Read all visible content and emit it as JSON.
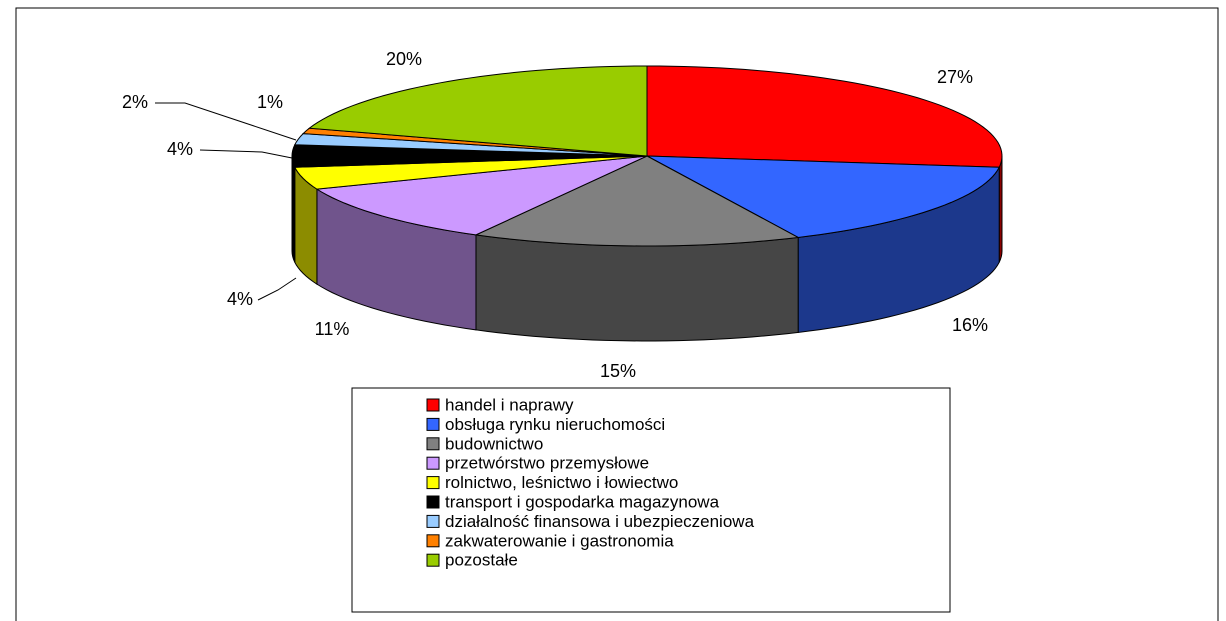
{
  "chart_data": {
    "type": "pie3d",
    "categories": [
      "handel i naprawy",
      "obsługa rynku nieruchomości",
      "budownictwo",
      "przetwórstwo przemysłowe",
      "rolnictwo, leśnictwo i łowiectwo",
      "transport i gospodarka magazynowa",
      "działalność finansowa i ubezpieczeniowa",
      "zakwaterowanie i gastronomia",
      "pozostałe"
    ],
    "values": [
      27,
      16,
      15,
      11,
      4,
      4,
      2,
      1,
      20
    ],
    "value_labels": [
      "27%",
      "16%",
      "15%",
      "11%",
      "4%",
      "4%",
      "2%",
      "1%",
      "20%"
    ],
    "colors": [
      "#ff0000",
      "#3366ff",
      "#808080",
      "#cc99ff",
      "#ffff00",
      "#000000",
      "#99ccff",
      "#ff8000",
      "#99cc00"
    ],
    "legend": "bottom"
  }
}
